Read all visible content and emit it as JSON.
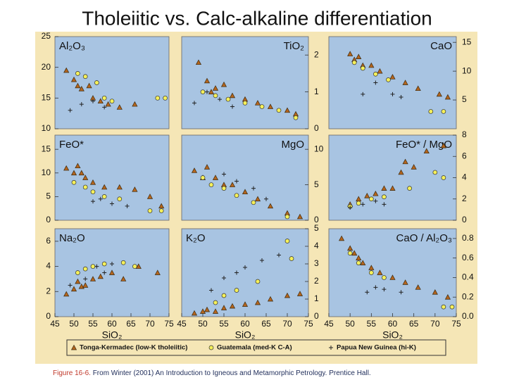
{
  "title": "Tholeiitic vs. Calc-alkaline differentiation",
  "legend": [
    {
      "name": "Tonga-Kermadec (low-K tholeiitic)",
      "marker": "triangle",
      "color": "#b5651d"
    },
    {
      "name": "Guatemala (med-K C-A)",
      "marker": "circle",
      "color": "#f5f05a"
    },
    {
      "name": "Papua New Guinea (hi-K)",
      "marker": "plus",
      "color": "#222222"
    }
  ],
  "chart_data": [
    {
      "type": "scatter",
      "title": "Al₂O₃",
      "xlim": [
        45,
        75
      ],
      "ylim": [
        10,
        25
      ],
      "yticks": [
        10,
        15,
        20,
        25
      ],
      "yaxis_side": "left",
      "series": [
        {
          "x": [
            48,
            50,
            51,
            52,
            54,
            55,
            57,
            59,
            62,
            66
          ],
          "y": [
            19.5,
            18,
            17,
            16.5,
            17,
            15,
            14.5,
            14,
            13.5,
            14
          ]
        },
        {
          "x": [
            51,
            53,
            56,
            58,
            60,
            72,
            74
          ],
          "y": [
            19,
            18.5,
            17.5,
            15,
            14.5,
            15,
            15
          ]
        },
        {
          "x": [
            49,
            52,
            55,
            58
          ],
          "y": [
            13,
            14,
            14.5,
            13.5
          ]
        }
      ]
    },
    {
      "type": "scatter",
      "title": "TiO₂",
      "xlim": [
        45,
        75
      ],
      "ylim": [
        0,
        2.5
      ],
      "yticks": [
        0,
        1,
        2
      ],
      "yaxis_side": "right",
      "series": [
        {
          "x": [
            49,
            51,
            52,
            53,
            55,
            57,
            60,
            63,
            66,
            70,
            72
          ],
          "y": [
            1.8,
            1.3,
            1.0,
            1.1,
            1.2,
            0.9,
            0.8,
            0.7,
            0.6,
            0.5,
            0.4
          ]
        },
        {
          "x": [
            50,
            53,
            56,
            60,
            64,
            68,
            72
          ],
          "y": [
            1.0,
            0.9,
            0.8,
            0.7,
            0.6,
            0.5,
            0.3
          ]
        },
        {
          "x": [
            48,
            51,
            54,
            57
          ],
          "y": [
            0.7,
            1.0,
            0.8,
            0.6
          ]
        }
      ]
    },
    {
      "type": "scatter",
      "title": "CaO",
      "xlim": [
        45,
        75
      ],
      "ylim": [
        0,
        16
      ],
      "yticks": [
        5,
        10,
        15
      ],
      "yaxis_side": "right",
      "series": [
        {
          "x": [
            50,
            51,
            52,
            53,
            55,
            57,
            60,
            63,
            66,
            71,
            73
          ],
          "y": [
            13,
            12,
            12.5,
            11,
            11,
            10,
            9,
            8,
            7,
            6,
            5.5
          ]
        },
        {
          "x": [
            51,
            53,
            56,
            59,
            69,
            72
          ],
          "y": [
            11.5,
            10.5,
            9.5,
            8.5,
            3,
            3
          ]
        },
        {
          "x": [
            53,
            56,
            60,
            62
          ],
          "y": [
            6,
            8,
            6,
            5.5
          ]
        }
      ]
    },
    {
      "type": "scatter",
      "title": "FeO*",
      "xlim": [
        45,
        75
      ],
      "ylim": [
        0,
        18
      ],
      "yticks": [
        0,
        5,
        10,
        15
      ],
      "yaxis_side": "left",
      "series": [
        {
          "x": [
            48,
            50,
            51,
            52,
            53,
            55,
            58,
            62,
            66,
            70,
            73
          ],
          "y": [
            11,
            10,
            11.5,
            10,
            9,
            8,
            7,
            7,
            6.5,
            5,
            3
          ]
        },
        {
          "x": [
            50,
            53,
            55,
            58,
            62,
            70,
            73
          ],
          "y": [
            8,
            7,
            6,
            5,
            4.5,
            2,
            2
          ]
        },
        {
          "x": [
            55,
            57,
            60,
            64
          ],
          "y": [
            4,
            4.5,
            3.5,
            3
          ]
        }
      ]
    },
    {
      "type": "scatter",
      "title": "MgO",
      "xlim": [
        45,
        75
      ],
      "ylim": [
        0,
        12
      ],
      "yticks": [
        0,
        5,
        10
      ],
      "yaxis_side": "right",
      "series": [
        {
          "x": [
            48,
            50,
            51,
            53,
            55,
            57,
            60,
            63,
            66,
            70,
            73
          ],
          "y": [
            7,
            6,
            7.5,
            6,
            5,
            5,
            4,
            3,
            2,
            1,
            0.5
          ]
        },
        {
          "x": [
            50,
            52,
            55,
            58,
            62,
            70
          ],
          "y": [
            6,
            5,
            4.5,
            3.5,
            2.5,
            0.5
          ]
        },
        {
          "x": [
            55,
            58,
            62,
            65
          ],
          "y": [
            6.5,
            5.5,
            4.5,
            3
          ]
        }
      ]
    },
    {
      "type": "scatter",
      "title": "FeO* / MgO",
      "xlim": [
        45,
        75
      ],
      "ylim": [
        0,
        8
      ],
      "yticks": [
        0,
        2,
        4,
        6,
        8
      ],
      "yaxis_side": "right",
      "series": [
        {
          "x": [
            50,
            52,
            54,
            56,
            58,
            60,
            62,
            63,
            65,
            68,
            72
          ],
          "y": [
            1.5,
            2,
            2.3,
            2.5,
            3,
            3,
            4.5,
            5.5,
            5,
            6.5,
            7
          ]
        },
        {
          "x": [
            50,
            52,
            55,
            58,
            64,
            70,
            72
          ],
          "y": [
            1.3,
            1.6,
            2,
            2.2,
            3,
            4.5,
            4
          ]
        },
        {
          "x": [
            50,
            53,
            56,
            58
          ],
          "y": [
            1.2,
            1.5,
            1.8,
            1.5
          ]
        }
      ]
    },
    {
      "type": "scatter",
      "title": "Na₂O",
      "xlim": [
        45,
        75
      ],
      "ylim": [
        0,
        7
      ],
      "yticks": [
        0,
        2,
        4,
        6
      ],
      "yaxis_side": "left",
      "xticks": [
        45,
        50,
        55,
        60,
        65,
        70,
        75
      ],
      "xlabel": "SiO₂",
      "series": [
        {
          "x": [
            48,
            50,
            51,
            52,
            53,
            55,
            57,
            60,
            63,
            67,
            72
          ],
          "y": [
            1.8,
            2.2,
            2.8,
            2.4,
            2.5,
            3,
            3.2,
            3.5,
            3,
            4,
            3.5
          ]
        },
        {
          "x": [
            51,
            53,
            55,
            58,
            63,
            66
          ],
          "y": [
            3.5,
            3.8,
            4,
            4.2,
            4.3,
            4
          ]
        },
        {
          "x": [
            49,
            53,
            56,
            58,
            60
          ],
          "y": [
            2.5,
            3,
            4,
            3.5,
            4.2
          ]
        }
      ]
    },
    {
      "type": "scatter",
      "title": "K₂O",
      "xlim": [
        45,
        75
      ],
      "ylim": [
        0,
        5
      ],
      "yticks": [
        0,
        1,
        2,
        3,
        4,
        5
      ],
      "yaxis_side": "right",
      "xticks": [
        45,
        50,
        55,
        60,
        65,
        70,
        75
      ],
      "xlabel": "SiO₂",
      "series": [
        {
          "x": [
            48,
            50,
            51,
            53,
            55,
            57,
            60,
            63,
            66,
            70,
            73
          ],
          "y": [
            0.2,
            0.3,
            0.4,
            0.3,
            0.5,
            0.6,
            0.7,
            0.8,
            1,
            1.2,
            1.3
          ]
        },
        {
          "x": [
            53,
            55,
            58,
            63,
            70,
            71
          ],
          "y": [
            0.8,
            1.2,
            1.5,
            2,
            4.3,
            3.3
          ]
        },
        {
          "x": [
            52,
            55,
            58,
            60,
            64,
            68
          ],
          "y": [
            1.5,
            2.2,
            2.5,
            2.8,
            3.2,
            3.5
          ]
        }
      ]
    },
    {
      "type": "scatter",
      "title": "CaO / Al₂O₃",
      "xlim": [
        45,
        75
      ],
      "ylim": [
        0,
        0.9
      ],
      "yticks": [
        {
          "value": 0,
          "label": "0.0"
        },
        0.2,
        0.4,
        0.6,
        0.8
      ],
      "yaxis_side": "right",
      "xticks": [
        45,
        50,
        55,
        60,
        65,
        70,
        75
      ],
      "xlabel": "SiO₂",
      "series": [
        {
          "x": [
            48,
            50,
            51,
            52,
            53,
            55,
            57,
            60,
            63,
            66,
            70,
            73
          ],
          "y": [
            0.8,
            0.7,
            0.65,
            0.6,
            0.55,
            0.5,
            0.45,
            0.4,
            0.35,
            0.3,
            0.25,
            0.2
          ]
        },
        {
          "x": [
            50,
            52,
            55,
            58,
            72,
            74
          ],
          "y": [
            0.65,
            0.55,
            0.45,
            0.4,
            0.1,
            0.1
          ]
        },
        {
          "x": [
            54,
            56,
            58,
            62
          ],
          "y": [
            0.25,
            0.3,
            0.28,
            0.25
          ]
        }
      ]
    }
  ],
  "figure_label": "Figure 16-6.",
  "caption": "From Winter (2001) An Introduction to Igneous and Metamorphic Petrology. Prentice Hall."
}
